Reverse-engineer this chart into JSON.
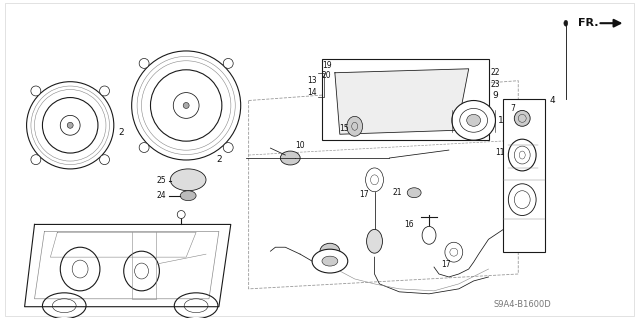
{
  "bg": "#ffffff",
  "lc": "#1a1a1a",
  "tc": "#111111",
  "gray": "#888888",
  "watermark": "S9A4-B1600D",
  "fr_label": "FR.",
  "fig_width": 6.4,
  "fig_height": 3.19,
  "dpi": 100,
  "fs": 6.5,
  "fs_sm": 5.5
}
